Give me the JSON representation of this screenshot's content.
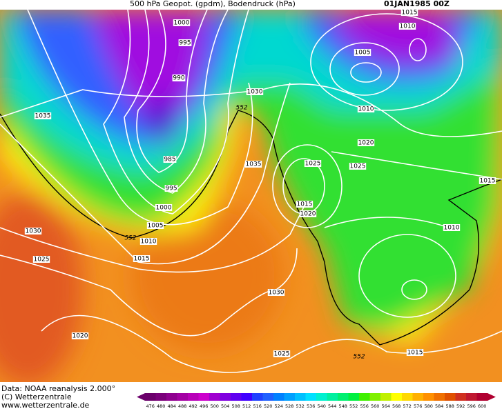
{
  "header": {
    "title": "500 hPa Geopot. (gpdm), Bodendruck (hPa)",
    "date": "01JAN1985 00Z"
  },
  "map": {
    "isobar_labels": [
      "1000",
      "995",
      "990",
      "985",
      "995",
      "1000",
      "1005",
      "1010",
      "1015",
      "1035",
      "1030",
      "1025",
      "1020",
      "1030",
      "1035",
      "1030",
      "1025",
      "1015",
      "1010",
      "1005",
      "1010",
      "1020",
      "1025",
      "1025",
      "1015",
      "1020",
      "1015",
      "1010",
      "1015"
    ],
    "contour_labels": [
      "552",
      "552",
      "552"
    ]
  },
  "footer": {
    "lines": [
      "Data: NOAA reanalysis 2.000°",
      "(C) Wetterzentrale",
      "www.wetterzentrale.de"
    ]
  },
  "colorbar": {
    "ticks": [
      476,
      480,
      484,
      488,
      492,
      496,
      500,
      504,
      508,
      512,
      516,
      520,
      524,
      528,
      532,
      536,
      540,
      544,
      548,
      552,
      556,
      560,
      564,
      568,
      572,
      576,
      580,
      584,
      588,
      592,
      596,
      600
    ],
    "colors": [
      "#6b006b",
      "#7a007a",
      "#8f008f",
      "#a300a3",
      "#b800b8",
      "#cc00cc",
      "#a000d0",
      "#8000e0",
      "#6000f0",
      "#4000ff",
      "#2040ff",
      "#2060ff",
      "#0080ff",
      "#00a0ff",
      "#00c0ff",
      "#00e0ff",
      "#00f0d0",
      "#00f0a0",
      "#00f070",
      "#00f040",
      "#40f000",
      "#80f000",
      "#c0f000",
      "#ffff00",
      "#ffd800",
      "#ffb000",
      "#ff9000",
      "#f07000",
      "#e05000",
      "#d03020",
      "#c01830",
      "#b00030"
    ]
  }
}
